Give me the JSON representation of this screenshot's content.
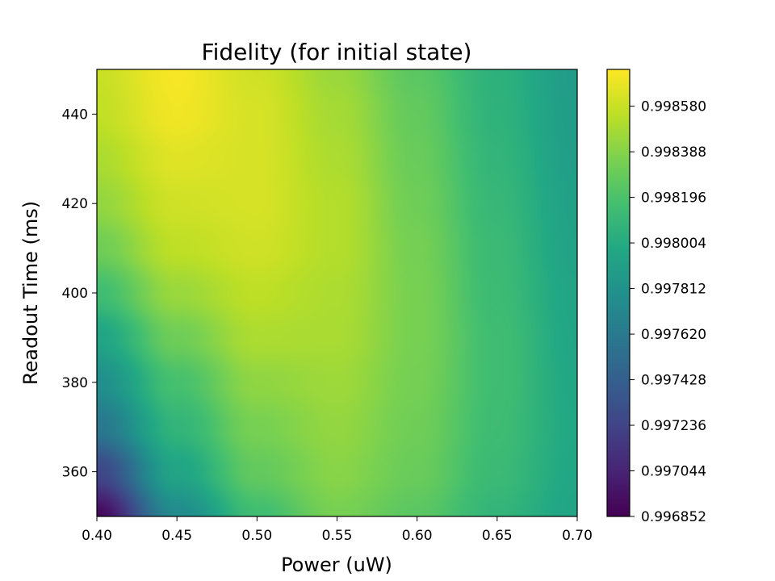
{
  "chart_data": {
    "type": "heatmap",
    "title": "Fidelity (for initial state)",
    "xlabel": "Power (uW)",
    "ylabel": "Readout Time (ms)",
    "xlim": [
      0.4,
      0.7
    ],
    "ylim": [
      350,
      450
    ],
    "x_ticks": [
      "0.40",
      "0.45",
      "0.50",
      "0.55",
      "0.60",
      "0.65",
      "0.70"
    ],
    "y_ticks": [
      "360",
      "380",
      "400",
      "420",
      "440"
    ],
    "x": [
      0.4,
      0.45,
      0.5,
      0.55,
      0.6,
      0.65,
      0.7
    ],
    "y": [
      350,
      360,
      370,
      380,
      390,
      400,
      410,
      420,
      430,
      440,
      450
    ],
    "z": [
      [
        0.9969,
        0.99775,
        0.99815,
        0.99835,
        0.99825,
        0.99808,
        0.99795
      ],
      [
        0.99725,
        0.99795,
        0.99828,
        0.9984,
        0.9983,
        0.99812,
        0.99797
      ],
      [
        0.9976,
        0.99808,
        0.99835,
        0.99843,
        0.99832,
        0.99814,
        0.99798
      ],
      [
        0.99778,
        0.99818,
        0.99842,
        0.99846,
        0.99834,
        0.99815,
        0.99797
      ],
      [
        0.99795,
        0.99832,
        0.9985,
        0.99849,
        0.99835,
        0.99815,
        0.99796
      ],
      [
        0.99815,
        0.99845,
        0.99855,
        0.9985,
        0.99835,
        0.99813,
        0.99795
      ],
      [
        0.99832,
        0.99855,
        0.9986,
        0.99852,
        0.99834,
        0.99812,
        0.99793
      ],
      [
        0.99843,
        0.9986,
        0.99862,
        0.99852,
        0.99832,
        0.9981,
        0.99792
      ],
      [
        0.9985,
        0.99865,
        0.99862,
        0.9985,
        0.9983,
        0.99808,
        0.9979
      ],
      [
        0.99856,
        0.9987,
        0.99862,
        0.99848,
        0.99828,
        0.99806,
        0.99789
      ],
      [
        0.99858,
        0.99872,
        0.9986,
        0.99845,
        0.99825,
        0.99805,
        0.99788
      ]
    ],
    "colorbar": {
      "colormap": "viridis",
      "range": [
        0.996852,
        0.998735
      ],
      "ticks": [
        "0.996852",
        "0.997044",
        "0.997236",
        "0.997428",
        "0.997620",
        "0.997812",
        "0.998004",
        "0.998196",
        "0.998388",
        "0.998580"
      ]
    }
  }
}
